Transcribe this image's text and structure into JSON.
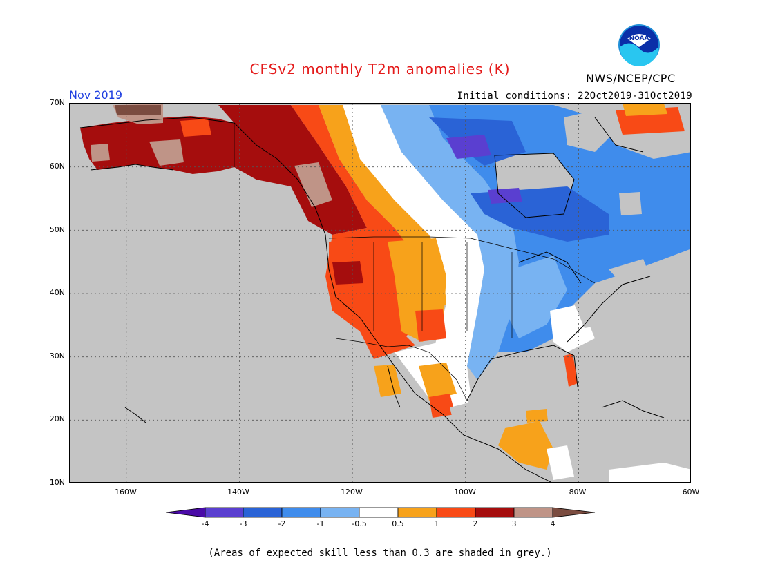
{
  "title": "CFSv2 monthly T2m anomalies (K)",
  "period": "Nov 2019",
  "initial_conditions": "Initial conditions: 22Oct2019-31Oct2019",
  "agency": "NWS/NCEP/CPC",
  "logo_text": "NOAA",
  "footnote": "(Areas of expected skill less than 0.3 are shaded in grey.)",
  "map": {
    "lat_range": [
      10,
      70
    ],
    "lon_range": [
      -170,
      -60
    ],
    "lat_labels": [
      {
        "value": 70,
        "label": "70N"
      },
      {
        "value": 60,
        "label": "60N"
      },
      {
        "value": 50,
        "label": "50N"
      },
      {
        "value": 40,
        "label": "40N"
      },
      {
        "value": 30,
        "label": "30N"
      },
      {
        "value": 20,
        "label": "20N"
      },
      {
        "value": 10,
        "label": "10N"
      }
    ],
    "lon_labels": [
      {
        "value": -160,
        "label": "160W"
      },
      {
        "value": -140,
        "label": "140W"
      },
      {
        "value": -120,
        "label": "120W"
      },
      {
        "value": -100,
        "label": "100W"
      },
      {
        "value": -80,
        "label": "80W"
      },
      {
        "value": -60,
        "label": "60W"
      }
    ],
    "grid": "dotted",
    "colors": {
      "ocean_grey": "#c4c4c4",
      "below_4": "#4a0aa8",
      "m4_m3": "#5a3fd0",
      "m3_m2": "#2a63d6",
      "m2_m1": "#3f8cec",
      "m1_m05": "#78b3f2",
      "m05_05": "#ffffff",
      "p05_1": "#f7a21b",
      "p1_2": "#f84a16",
      "p2_3": "#a50d0d",
      "p3_4": "#bf9487",
      "above_4": "#7b4c40"
    }
  },
  "colorbar": {
    "ticks": [
      "-4",
      "-3",
      "-2",
      "-1",
      "-0.5",
      "0.5",
      "1",
      "2",
      "3",
      "4"
    ],
    "colors": [
      "#4a0aa8",
      "#5a3fd0",
      "#2a63d6",
      "#3f8cec",
      "#78b3f2",
      "#ffffff",
      "#f7a21b",
      "#f84a16",
      "#a50d0d",
      "#bf9487",
      "#7b4c40"
    ]
  }
}
